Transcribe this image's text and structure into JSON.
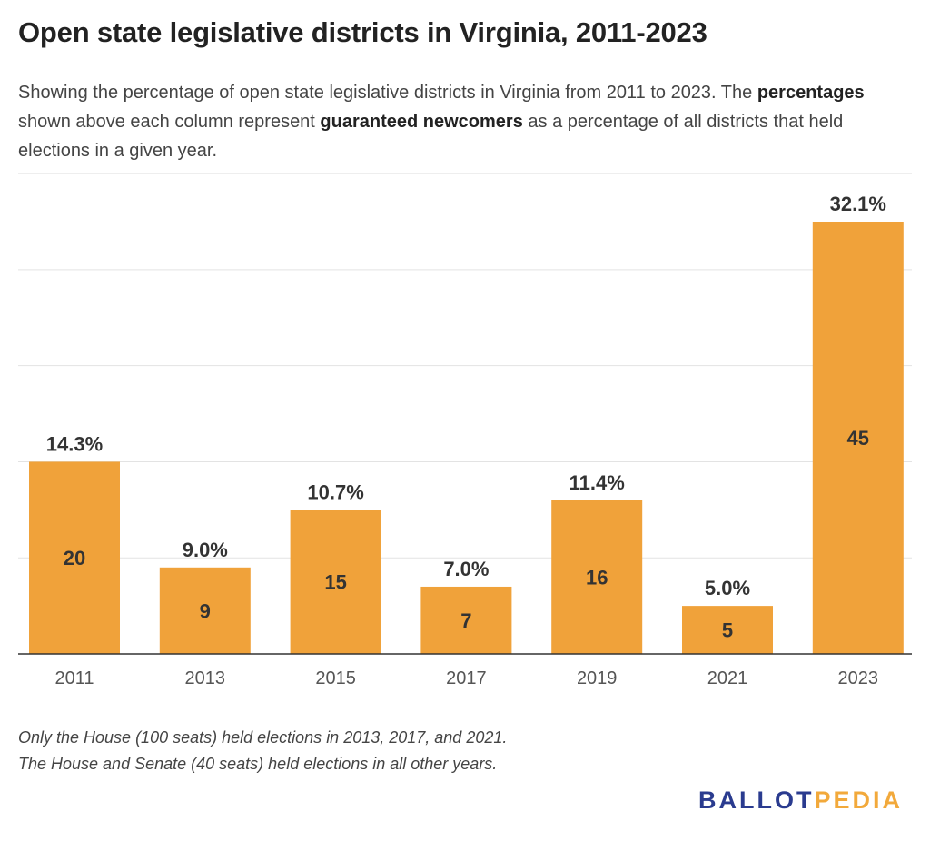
{
  "title": "Open state legislative districts in Virginia, 2011-2023",
  "subtitle": {
    "p1": "Showing the percentage of open state legislative districts in Virginia from 2011 to 2023. The ",
    "b1": "percentages",
    "p2": " shown above each column represent ",
    "b2": "guaranteed newcomers",
    "p3": " as a percentage of all districts that held elections in a given year."
  },
  "notes": [
    "Only the House (100 seats) held elections in 2013, 2017, and 2021.",
    "The House and Senate (40 seats) held elections in all other years."
  ],
  "logo": {
    "part1": "BALLOT",
    "part2": "PEDIA"
  },
  "colors": {
    "bar": "#f0a23a",
    "grid": "#e3e3e3",
    "axis": "#333333",
    "logo_blue": "#2a3b8f",
    "logo_orange": "#f2a93b"
  },
  "chart_data": {
    "type": "bar",
    "categories": [
      "2011",
      "2013",
      "2015",
      "2017",
      "2019",
      "2021",
      "2023"
    ],
    "values": [
      20,
      9,
      15,
      7,
      16,
      5,
      45
    ],
    "top_labels": [
      "14.3%",
      "9.0%",
      "10.7%",
      "7.0%",
      "11.4%",
      "5.0%",
      "32.1%"
    ],
    "inner_labels": [
      "20",
      "9",
      "15",
      "7",
      "16",
      "5",
      "45"
    ],
    "ylim": [
      0,
      50
    ],
    "grid": true,
    "gridlines": [
      10,
      20,
      30,
      40,
      50
    ]
  }
}
